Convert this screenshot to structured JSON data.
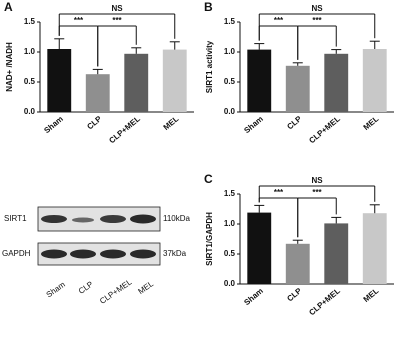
{
  "chart_data": [
    {
      "type": "bar",
      "panel": "A",
      "y_label": "NAD+ /NADH",
      "categories": [
        "Sham",
        "CLP",
        "CLP+MEL",
        "MEL"
      ],
      "values": [
        1.05,
        0.63,
        0.97,
        1.04
      ],
      "errors": [
        0.17,
        0.08,
        0.1,
        0.13
      ],
      "colors": [
        "#111111",
        "#8f8f8f",
        "#5e5e5e",
        "#c8c8c8"
      ],
      "ylim": [
        0,
        1.5
      ],
      "yticks": [
        {
          "value": 0,
          "label": "0.0"
        },
        {
          "value": 0.5,
          "label": "0.5"
        },
        {
          "value": 1,
          "label": "1.0"
        },
        {
          "value": 1.5,
          "label": "1.5"
        }
      ],
      "annotations": [
        {
          "text": "***",
          "from": 0,
          "to": 1
        },
        {
          "text": "***",
          "from": 1,
          "to": 2
        },
        {
          "text": "NS",
          "from": 0,
          "to": 3
        }
      ]
    },
    {
      "type": "bar",
      "panel": "B",
      "y_label": "SIRT1 activity",
      "categories": [
        "Sham",
        "CLP",
        "CLP+MEL",
        "MEL"
      ],
      "values": [
        1.04,
        0.77,
        0.97,
        1.05
      ],
      "errors": [
        0.1,
        0.05,
        0.07,
        0.13
      ],
      "colors": [
        "#111111",
        "#8f8f8f",
        "#5e5e5e",
        "#c8c8c8"
      ],
      "ylim": [
        0,
        1.5
      ],
      "yticks": [
        {
          "value": 0,
          "label": "0.0"
        },
        {
          "value": 0.5,
          "label": "0.5"
        },
        {
          "value": 1,
          "label": "1.0"
        },
        {
          "value": 1.5,
          "label": "1.5"
        }
      ],
      "annotations": [
        {
          "text": "***",
          "from": 0,
          "to": 1
        },
        {
          "text": "***",
          "from": 1,
          "to": 2
        },
        {
          "text": "NS",
          "from": 0,
          "to": 3
        }
      ]
    },
    {
      "type": "bar",
      "panel": "C",
      "y_label": "SIRT1/GAPDH",
      "categories": [
        "Sham",
        "CLP",
        "CLP+MEL",
        "MEL"
      ],
      "values": [
        1.19,
        0.67,
        1.01,
        1.18
      ],
      "errors": [
        0.12,
        0.06,
        0.1,
        0.14
      ],
      "colors": [
        "#111111",
        "#8f8f8f",
        "#5e5e5e",
        "#c8c8c8"
      ],
      "ylim": [
        0,
        1.5
      ],
      "yticks": [
        {
          "value": 0,
          "label": "0.0"
        },
        {
          "value": 0.5,
          "label": "0.5"
        },
        {
          "value": 1,
          "label": "1.0"
        },
        {
          "value": 1.5,
          "label": "1.5"
        }
      ],
      "annotations": [
        {
          "text": "***",
          "from": 0,
          "to": 1
        },
        {
          "text": "***",
          "from": 1,
          "to": 2
        },
        {
          "text": "NS",
          "from": 0,
          "to": 3
        }
      ]
    }
  ],
  "blot": {
    "proteins": [
      "SIRT1",
      "GAPDH"
    ],
    "sizes": [
      "110kDa",
      "37kDa"
    ],
    "lanes": [
      "Sham",
      "CLP",
      "CLP+MEL",
      "MEL"
    ]
  }
}
